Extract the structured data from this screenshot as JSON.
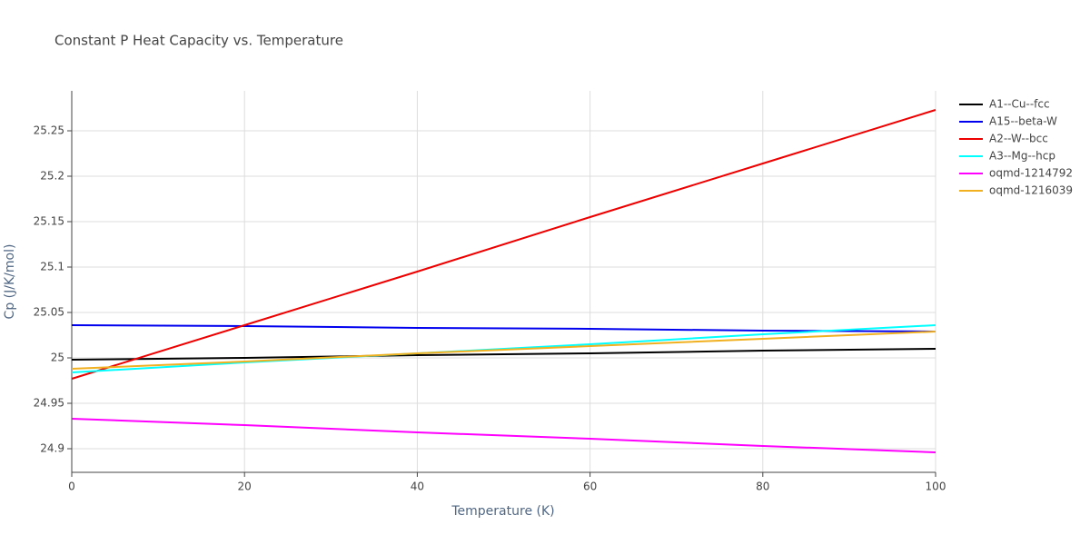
{
  "chart_data": {
    "type": "line",
    "title": "Constant P Heat Capacity vs. Temperature",
    "x_label": "Temperature (K)",
    "y_label": "Cp (J/K/mol)",
    "x": [
      0,
      20,
      40,
      60,
      80,
      100
    ],
    "series": [
      {
        "name": "A1--Cu--fcc",
        "color": "#000000",
        "values": [
          24.998,
          25.0,
          25.003,
          25.005,
          25.008,
          25.01
        ]
      },
      {
        "name": "A15--beta-W",
        "color": "#0000ee",
        "values": [
          25.036,
          25.035,
          25.033,
          25.032,
          25.03,
          25.029
        ]
      },
      {
        "name": "A2--W--bcc",
        "color": "#ee0000",
        "values": [
          24.977,
          25.036,
          25.095,
          25.155,
          25.214,
          25.273
        ]
      },
      {
        "name": "A3--Mg--hcp",
        "color": "#00ffff",
        "values": [
          24.984,
          24.995,
          25.005,
          25.015,
          25.026,
          25.036
        ]
      },
      {
        "name": "oqmd-1214792",
        "color": "#ff00ff",
        "values": [
          24.933,
          24.926,
          24.918,
          24.911,
          24.903,
          24.896
        ]
      },
      {
        "name": "oqmd-1216039",
        "color": "#f0b020",
        "values": [
          24.988,
          24.996,
          25.005,
          25.013,
          25.021,
          25.029
        ]
      }
    ],
    "xlim": [
      0,
      100
    ],
    "xticks": [
      0,
      20,
      40,
      60,
      80,
      100
    ],
    "ylim": [
      24.874,
      25.294
    ],
    "yticks": [
      24.9,
      24.95,
      25,
      25.05,
      25.1,
      25.15,
      25.2,
      25.25
    ],
    "grid": true,
    "legend": "right"
  }
}
